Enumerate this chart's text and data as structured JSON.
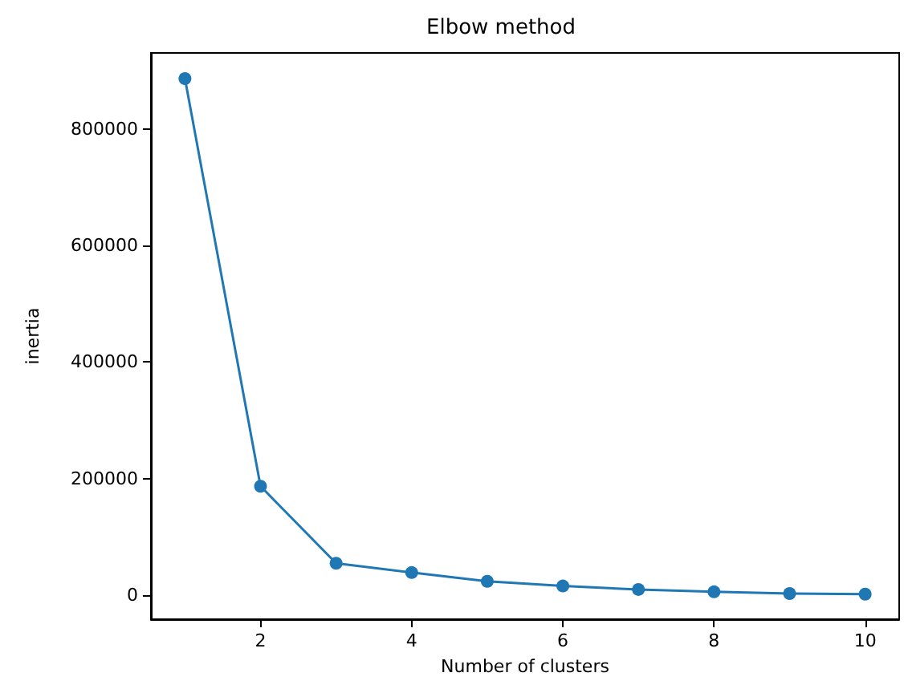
{
  "chart_data": {
    "type": "line",
    "title": "Elbow method",
    "xlabel": "Number of clusters",
    "ylabel": "inertia",
    "x": [
      1,
      2,
      3,
      4,
      5,
      6,
      7,
      8,
      9,
      10
    ],
    "series": [
      {
        "color": "#1f77b4",
        "values": [
          886000,
          187000,
          55000,
          39000,
          24000,
          16000,
          10000,
          6000,
          3000,
          2000
        ]
      }
    ],
    "xlim": [
      0.55,
      10.45
    ],
    "xticks": [
      2,
      4,
      6,
      8,
      10
    ],
    "ylim": [
      -41000,
      930000
    ],
    "yticks": [
      0,
      200000,
      400000,
      600000,
      800000
    ],
    "marker": "circle",
    "line_style": "solid"
  }
}
